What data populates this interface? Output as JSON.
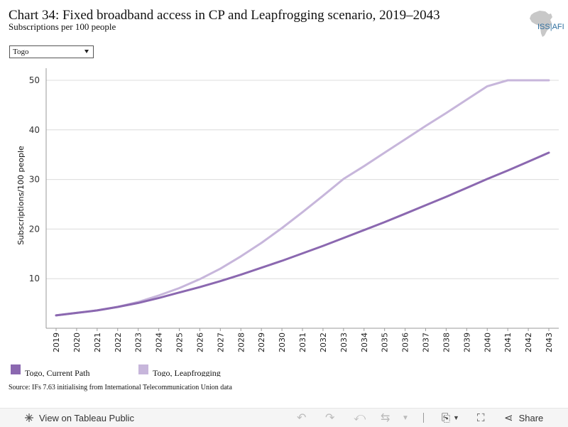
{
  "header": {
    "title": "Chart 34: Fixed broadband access in CP and Leapfrogging scenario, 2019–2043",
    "subtitle": "Subscriptions per 100 people",
    "logo_text": "ISS|AFI"
  },
  "filter": {
    "selected": "Togo"
  },
  "source": "Source: IFs 7.63 initialising from International Telecommunication Union data",
  "toolbar": {
    "view_label": "View on Tableau Public",
    "share_label": "Share"
  },
  "colors": {
    "current_path": "#8b68b0",
    "leapfrogging": "#c7b6db",
    "grid": "#dcdcdc",
    "axis": "#999999"
  },
  "chart_data": {
    "type": "line",
    "ylabel": "Subscriptions/100 people",
    "xlabel": "",
    "ylim": [
      0,
      50
    ],
    "yticks": [
      10,
      20,
      30,
      40,
      50
    ],
    "grid": true,
    "legend_position": "bottom",
    "x": [
      "2019",
      "2020",
      "2021",
      "2022",
      "2023",
      "2024",
      "2025",
      "2026",
      "2027",
      "2028",
      "2029",
      "2030",
      "2031",
      "2032",
      "2033",
      "2034",
      "2035",
      "2036",
      "2037",
      "2038",
      "2039",
      "2040",
      "2041",
      "2042",
      "2043"
    ],
    "series": [
      {
        "name": "Togo, Current Path",
        "values": [
          2.6,
          3.1,
          3.6,
          4.3,
          5.1,
          6.1,
          7.2,
          8.3,
          9.5,
          10.8,
          12.2,
          13.6,
          15.1,
          16.6,
          18.2,
          19.8,
          21.4,
          23.1,
          24.8,
          26.5,
          28.3,
          30.1,
          31.8,
          33.6,
          35.4
        ]
      },
      {
        "name": "Togo, Leapfrogging",
        "values": [
          2.6,
          3.1,
          3.6,
          4.3,
          5.3,
          6.6,
          8.1,
          9.9,
          12.0,
          14.5,
          17.2,
          20.2,
          23.4,
          26.7,
          30.1,
          32.7,
          35.4,
          38.1,
          40.8,
          43.4,
          46.1,
          48.8,
          50.0,
          50.0,
          50.0
        ]
      }
    ]
  }
}
